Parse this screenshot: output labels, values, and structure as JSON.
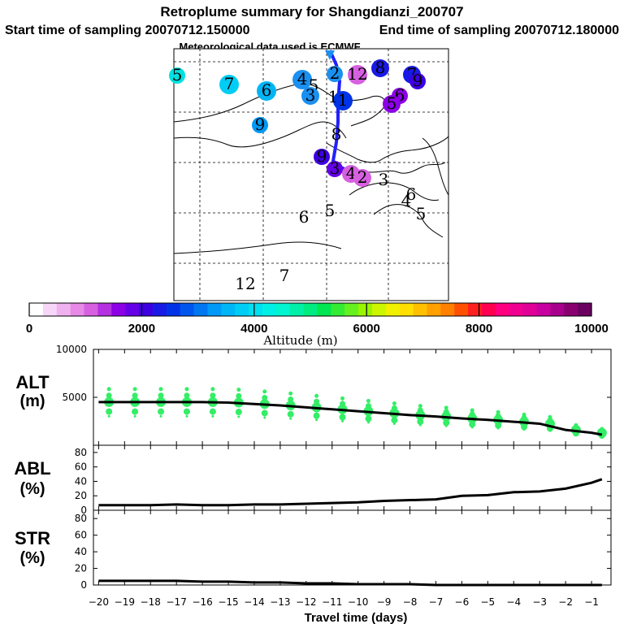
{
  "header": {
    "title": "Retroplume summary for Shangdianzi_200707",
    "start_label": "Start time of sampling 20070712.150000",
    "end_label": "End time of sampling 20070712.180000",
    "met_label": "Meteorological data used is ECMWF"
  },
  "colors": {
    "colorbar": [
      "#ffffff",
      "#f7d6f7",
      "#efb2ef",
      "#e68ae6",
      "#d660e0",
      "#b530e0",
      "#8c00e6",
      "#6600e6",
      "#3d00e0",
      "#1a1ae6",
      "#0033e6",
      "#0055ee",
      "#0077f0",
      "#0099f5",
      "#00b5f5",
      "#00cdf5",
      "#00e0f0",
      "#00f0e6",
      "#00f5d0",
      "#00f0a8",
      "#00eb80",
      "#00e650",
      "#33eb33",
      "#66f020",
      "#99f500",
      "#ccf500",
      "#f0f000",
      "#ffe000",
      "#ffc000",
      "#ffa000",
      "#ff8000",
      "#ff5000",
      "#ff2020",
      "#ff0050",
      "#ff0080",
      "#f00090",
      "#e00098",
      "#c800a0",
      "#a8008c",
      "#880070",
      "#6a0060"
    ],
    "alt_dots": "#33ee66",
    "plume": "#2020ff"
  },
  "map": {
    "numbers": [
      {
        "t": "5",
        "c": "#00e0e0"
      },
      {
        "t": "7",
        "c": "#00cdf5"
      },
      {
        "t": "6",
        "c": "#00b5f5"
      },
      {
        "t": "4",
        "c": "#1a90f0"
      },
      {
        "t": "5",
        "c": "#1a90f0"
      },
      {
        "t": "3",
        "c": "#1a90f0"
      },
      {
        "t": "9",
        "c": "#0099f5"
      },
      {
        "t": "2",
        "c": "#1a90f0"
      },
      {
        "t": "1",
        "c": "#0033e6"
      },
      {
        "t": "1",
        "c": "#0033e6"
      },
      {
        "t": "8",
        "c": "#1a1ae6"
      },
      {
        "t": "7",
        "c": "#1a1ae6"
      },
      {
        "t": "9",
        "c": "#3d00e0"
      },
      {
        "t": "6",
        "c": "#8c00e6"
      },
      {
        "t": "5",
        "c": "#8c00e6"
      },
      {
        "t": "8",
        "c": "#3d00e0"
      },
      {
        "t": "9",
        "c": "#3d00e0"
      },
      {
        "t": "3",
        "c": "#6600e6"
      },
      {
        "t": "4",
        "c": "#d660e0"
      },
      {
        "t": "2",
        "c": "#d660e0"
      },
      {
        "t": "3",
        "c": "#b530e0"
      },
      {
        "t": "6",
        "c": "#e68ae6"
      },
      {
        "t": "4",
        "c": "#e68ae6"
      },
      {
        "t": "5",
        "c": "#d660e0"
      },
      {
        "t": "6",
        "c": "#d660e0"
      },
      {
        "t": "5",
        "c": "#b530e0"
      },
      {
        "t": "7",
        "c": "#8c00e6"
      },
      {
        "t": "12",
        "c": "#d660e0"
      },
      {
        "t": "12",
        "c": "#1a90f0"
      }
    ]
  },
  "chart_data": [
    {
      "type": "colorbar",
      "title": "Altitude (m)",
      "ticks": [
        0,
        2000,
        4000,
        6000,
        8000,
        10000
      ],
      "range": [
        0,
        10000
      ]
    },
    {
      "type": "line",
      "name": "ALT",
      "ylabel": "ALT\n(m)",
      "ylim": [
        0,
        10000
      ],
      "yticks": [
        5000,
        10000
      ],
      "x": [
        -20,
        -19,
        -18,
        -17,
        -16,
        -15,
        -14,
        -13,
        -12,
        -11,
        -10,
        -9,
        -8,
        -7,
        -6,
        -5,
        -4,
        -3,
        -2,
        -1,
        -0.6
      ],
      "values": [
        4500,
        4500,
        4500,
        4500,
        4500,
        4450,
        4300,
        4150,
        3950,
        3750,
        3550,
        3350,
        3150,
        3000,
        2800,
        2650,
        2450,
        2250,
        1600,
        1300,
        1100
      ]
    },
    {
      "type": "line",
      "name": "ABL",
      "ylabel": "ABL\n(%)",
      "ylim": [
        0,
        90
      ],
      "yticks": [
        0,
        20,
        40,
        60,
        80
      ],
      "x": [
        -20,
        -19,
        -18,
        -17,
        -16,
        -15,
        -14,
        -13,
        -12,
        -11,
        -10,
        -9,
        -8,
        -7,
        -6,
        -5,
        -4,
        -3,
        -2,
        -1,
        -0.6
      ],
      "values": [
        7,
        7,
        7,
        8,
        7,
        7,
        8,
        8,
        9,
        10,
        11,
        13,
        14,
        15,
        20,
        21,
        25,
        26,
        30,
        38,
        43
      ]
    },
    {
      "type": "line",
      "name": "STR",
      "ylabel": "STR\n(%)",
      "ylim": [
        0,
        90
      ],
      "yticks": [
        0,
        20,
        40,
        60,
        80
      ],
      "x": [
        -20,
        -19,
        -18,
        -17,
        -16,
        -15,
        -14,
        -13,
        -12,
        -11,
        -10,
        -9,
        -8,
        -7,
        -6,
        -5,
        -4,
        -3,
        -2,
        -1,
        -0.6
      ],
      "values": [
        5,
        5,
        5,
        5,
        4,
        4,
        3,
        3,
        2,
        2,
        1,
        1,
        1,
        0,
        0,
        0,
        0,
        0,
        0,
        0,
        0
      ]
    }
  ],
  "axis": {
    "xticks": [
      -20,
      -19,
      -18,
      -17,
      -16,
      -15,
      -14,
      -13,
      -12,
      -11,
      -10,
      -9,
      -8,
      -7,
      -6,
      -5,
      -4,
      -3,
      -2,
      -1
    ],
    "xlabel": "Travel time (days)"
  }
}
